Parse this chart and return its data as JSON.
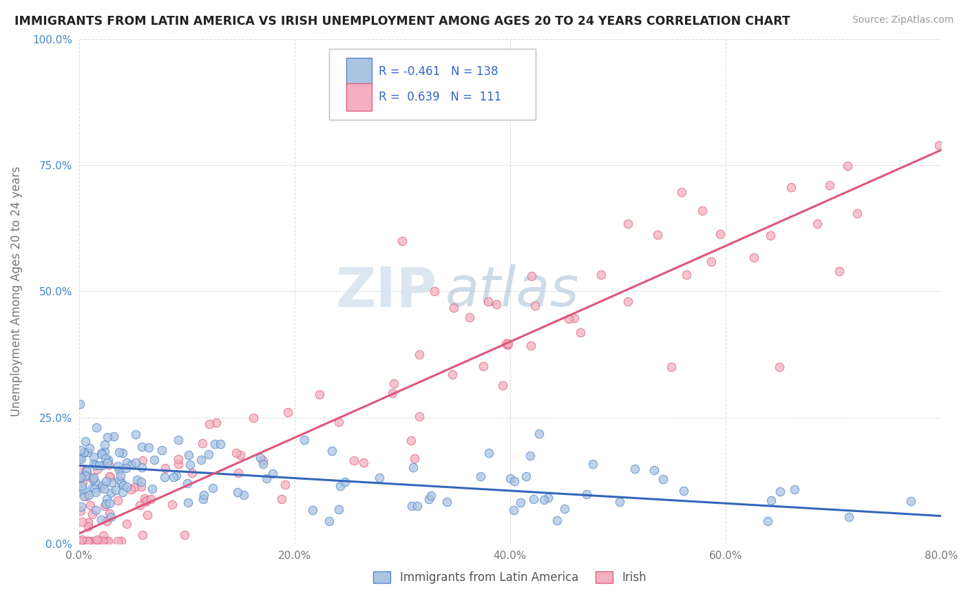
{
  "title": "IMMIGRANTS FROM LATIN AMERICA VS IRISH UNEMPLOYMENT AMONG AGES 20 TO 24 YEARS CORRELATION CHART",
  "source": "Source: ZipAtlas.com",
  "ylabel": "Unemployment Among Ages 20 to 24 years",
  "watermark_zip": "ZIP",
  "watermark_atlas": "atlas",
  "xlim": [
    0.0,
    0.8
  ],
  "ylim": [
    0.0,
    1.0
  ],
  "xticks": [
    0.0,
    0.2,
    0.4,
    0.6,
    0.8
  ],
  "yticks": [
    0.0,
    0.25,
    0.5,
    0.75,
    1.0
  ],
  "xticklabels": [
    "0.0%",
    "20.0%",
    "40.0%",
    "60.0%",
    "80.0%"
  ],
  "yticklabels": [
    "0.0%",
    "25.0%",
    "50.0%",
    "75.0%",
    "100.0%"
  ],
  "series": [
    {
      "name": "Immigrants from Latin America",
      "color": "#aac4e2",
      "edge_color": "#5588cc",
      "R": -0.461,
      "N": 138,
      "line_color": "#3366bb",
      "trend_x": [
        0.0,
        0.8
      ],
      "trend_y": [
        0.155,
        0.055
      ]
    },
    {
      "name": "Irish",
      "color": "#f4b0c0",
      "edge_color": "#e06080",
      "R": 0.639,
      "N": 111,
      "line_color": "#dd5577",
      "trend_x": [
        0.0,
        0.8
      ],
      "trend_y": [
        0.02,
        0.78
      ]
    }
  ],
  "legend_color": "#3366cc",
  "legend_neg_color": "#3366cc",
  "legend_pos_color": "#3366cc",
  "background_color": "#ffffff",
  "grid_color": "#cccccc",
  "seed_blue": 12,
  "seed_pink": 99
}
